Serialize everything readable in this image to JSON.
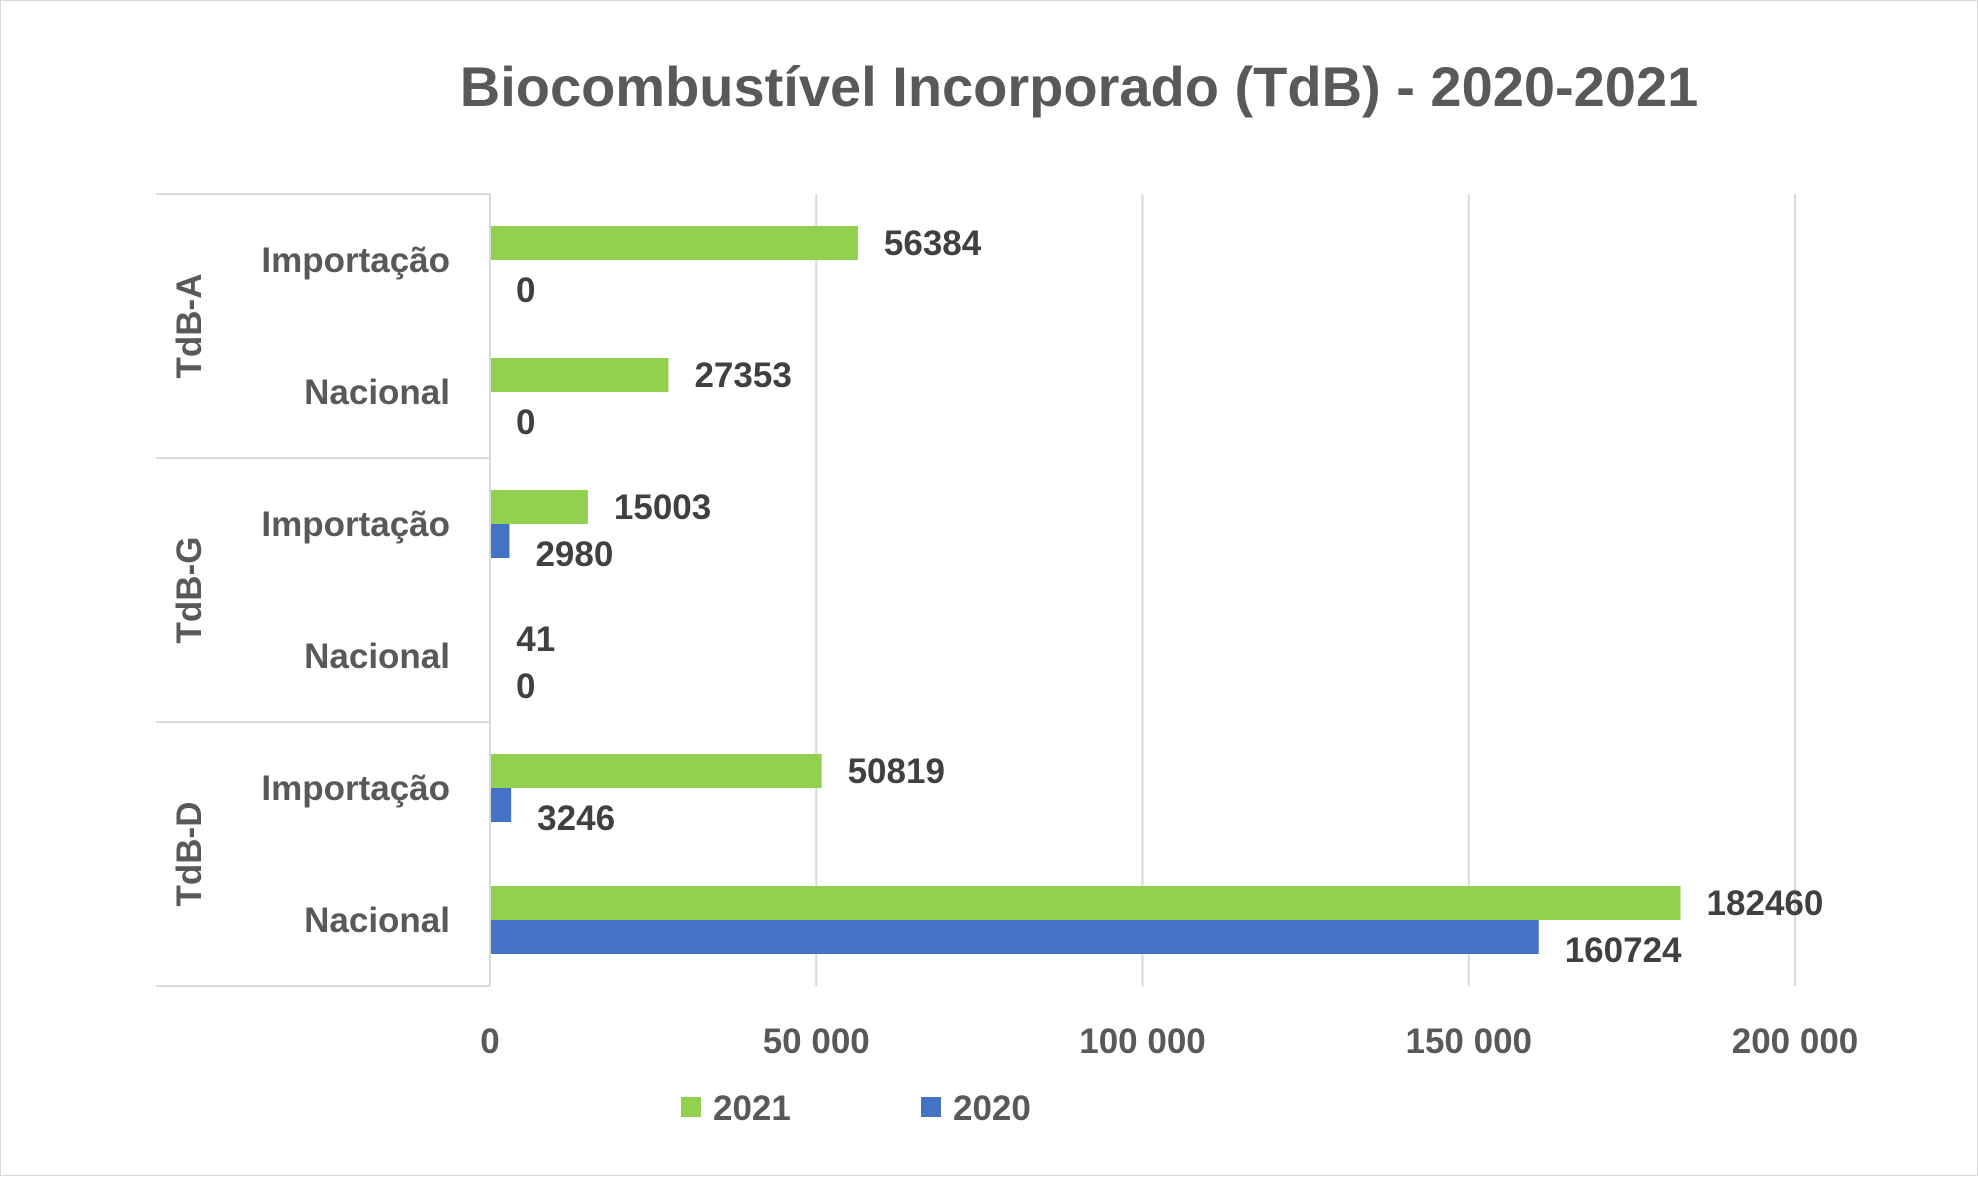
{
  "chart_data": {
    "type": "bar",
    "orientation": "horizontal",
    "title": "Biocombustível Incorporado (TdB) - 2020-2021",
    "xlim": [
      0,
      200000
    ],
    "x_ticks": [
      "0",
      "50 000",
      "100 000",
      "150 000",
      "200 000"
    ],
    "grid": true,
    "legend_position": "bottom",
    "groups": [
      {
        "name": "TdB-A",
        "categories": [
          {
            "label": "Importação",
            "values": {
              "2021": 56384,
              "2020": 0
            }
          },
          {
            "label": "Nacional",
            "values": {
              "2021": 27353,
              "2020": 0
            }
          }
        ]
      },
      {
        "name": "TdB-G",
        "categories": [
          {
            "label": "Importação",
            "values": {
              "2021": 15003,
              "2020": 2980
            }
          },
          {
            "label": "Nacional",
            "values": {
              "2021": 41,
              "2020": 0
            }
          }
        ]
      },
      {
        "name": "TdB-D",
        "categories": [
          {
            "label": "Importação",
            "values": {
              "2021": 50819,
              "2020": 3246
            }
          },
          {
            "label": "Nacional",
            "values": {
              "2021": 182460,
              "2020": 160724
            }
          }
        ]
      }
    ],
    "series": [
      {
        "name": "2021",
        "color": "#92d050"
      },
      {
        "name": "2020",
        "color": "#4472c4"
      }
    ]
  }
}
